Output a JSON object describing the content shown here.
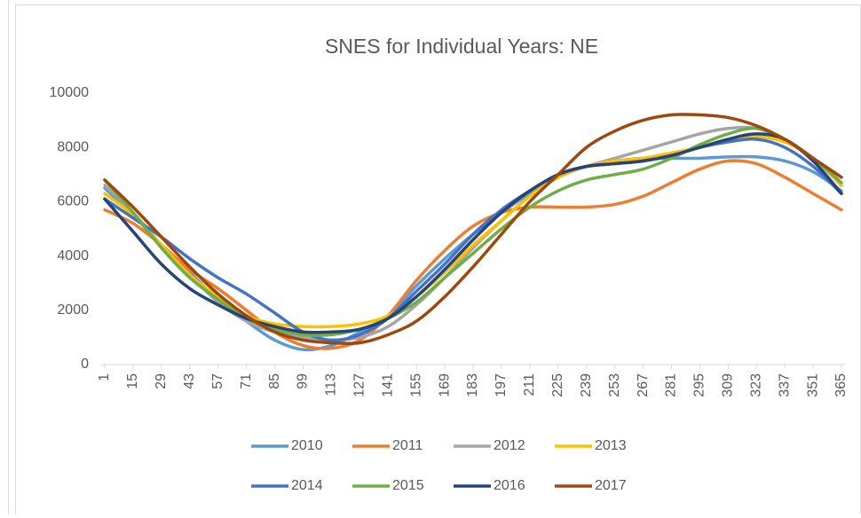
{
  "chart_data": {
    "type": "line",
    "title": "SNES for Individual Years: NE",
    "x": [
      1,
      15,
      29,
      43,
      57,
      71,
      85,
      99,
      113,
      127,
      141,
      155,
      169,
      183,
      197,
      211,
      225,
      239,
      253,
      267,
      281,
      295,
      309,
      323,
      337,
      351,
      365
    ],
    "xlim": [
      1,
      365
    ],
    "xticks": [
      1,
      15,
      29,
      43,
      57,
      71,
      85,
      99,
      113,
      127,
      141,
      155,
      169,
      183,
      197,
      211,
      225,
      239,
      253,
      267,
      281,
      295,
      309,
      323,
      337,
      351,
      365
    ],
    "ylim": [
      0,
      10000
    ],
    "yticks": [
      0,
      2000,
      4000,
      6000,
      8000,
      10000
    ],
    "grid": false,
    "legend": "bottom",
    "series": [
      {
        "name": "2010",
        "color": "#5b9bd5",
        "values": [
          6500,
          5500,
          4400,
          3400,
          2400,
          1600,
          900,
          550,
          700,
          1200,
          1800,
          2900,
          3900,
          4800,
          5600,
          6300,
          6900,
          7300,
          7500,
          7600,
          7600,
          7600,
          7650,
          7650,
          7500,
          7100,
          6400
        ]
      },
      {
        "name": "2011",
        "color": "#ed7d31",
        "values": [
          5700,
          5200,
          4400,
          3500,
          2800,
          2000,
          1200,
          700,
          600,
          900,
          1800,
          3100,
          4200,
          5100,
          5600,
          5800,
          5800,
          5800,
          5900,
          6200,
          6700,
          7200,
          7500,
          7400,
          6900,
          6300,
          5700
        ]
      },
      {
        "name": "2012",
        "color": "#a5a5a5",
        "values": [
          6600,
          5600,
          4400,
          3300,
          2300,
          1600,
          1200,
          1000,
          900,
          1000,
          1400,
          2200,
          3200,
          4300,
          5300,
          6200,
          6900,
          7300,
          7600,
          7900,
          8200,
          8500,
          8700,
          8700,
          8300,
          7600,
          6600
        ]
      },
      {
        "name": "2013",
        "color": "#ffc000",
        "values": [
          6300,
          5500,
          4400,
          3300,
          2500,
          1800,
          1500,
          1400,
          1400,
          1500,
          1800,
          2500,
          3400,
          4400,
          5300,
          6200,
          6900,
          7300,
          7500,
          7600,
          7800,
          8000,
          8300,
          8400,
          8200,
          7600,
          6600
        ]
      },
      {
        "name": "2014",
        "color": "#4472c4",
        "values": [
          6100,
          5400,
          4700,
          3900,
          3200,
          2600,
          1900,
          1200,
          900,
          1100,
          1700,
          2700,
          3700,
          4800,
          5700,
          6400,
          7000,
          7300,
          7400,
          7500,
          7700,
          8000,
          8200,
          8300,
          8000,
          7300,
          6300
        ]
      },
      {
        "name": "2015",
        "color": "#70ad47",
        "values": [
          6800,
          5600,
          4300,
          3200,
          2400,
          1700,
          1300,
          1100,
          1100,
          1300,
          1700,
          2300,
          3200,
          4100,
          5000,
          5800,
          6400,
          6800,
          7000,
          7200,
          7600,
          8100,
          8500,
          8700,
          8300,
          7600,
          6700
        ]
      },
      {
        "name": "2016",
        "color": "#264478",
        "values": [
          6100,
          4900,
          3700,
          2800,
          2200,
          1700,
          1400,
          1200,
          1200,
          1300,
          1700,
          2500,
          3500,
          4600,
          5600,
          6400,
          7000,
          7300,
          7400,
          7500,
          7700,
          8000,
          8300,
          8500,
          8300,
          7500,
          6300
        ]
      },
      {
        "name": "2017",
        "color": "#9e480e",
        "values": [
          6800,
          5800,
          4700,
          3600,
          2600,
          1800,
          1200,
          900,
          800,
          800,
          1100,
          1600,
          2500,
          3600,
          4800,
          6000,
          7000,
          8000,
          8600,
          9000,
          9200,
          9200,
          9100,
          8800,
          8300,
          7600,
          6900
        ]
      }
    ]
  }
}
